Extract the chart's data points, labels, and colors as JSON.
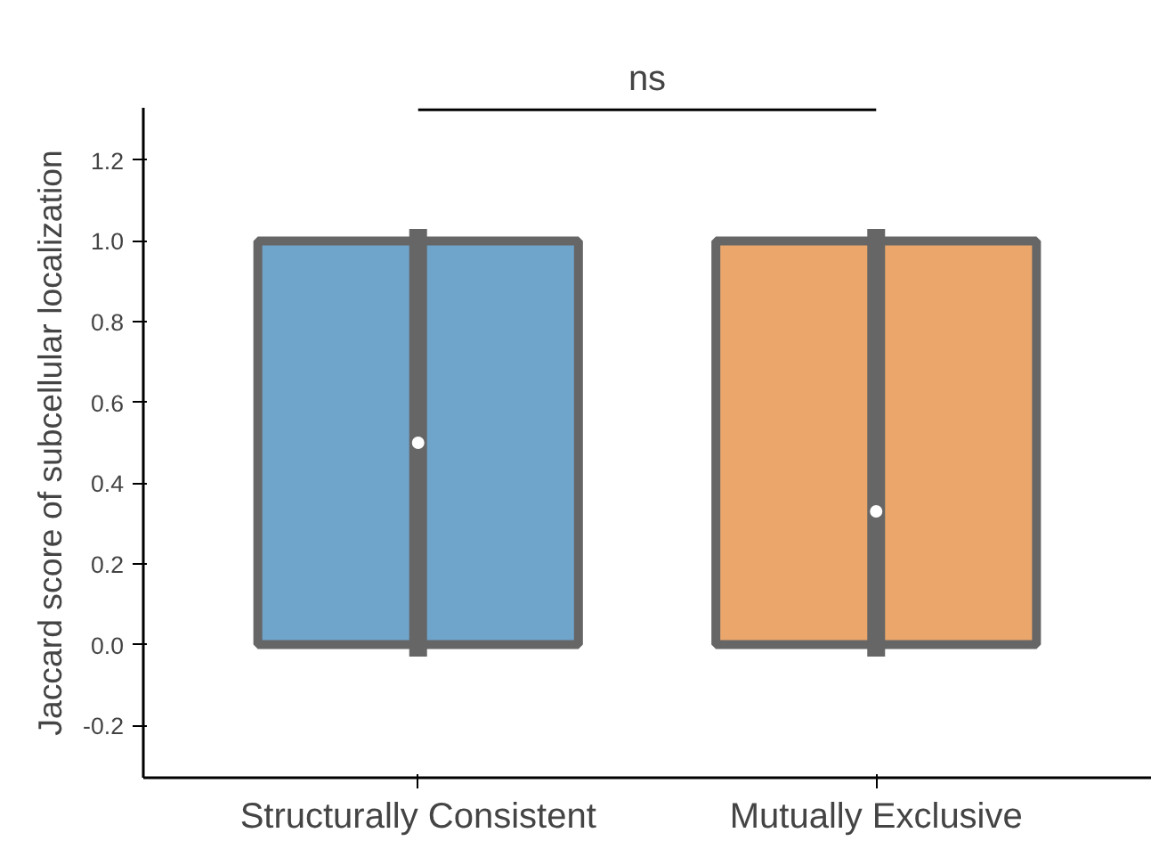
{
  "chart_data": {
    "type": "box",
    "ylabel": "Jaccard score of subcellular localization",
    "categories": [
      "Structurally Consistent",
      "Mutually Exclusive"
    ],
    "colors": [
      "#6fa4cb",
      "#eba66c"
    ],
    "boxes": [
      {
        "low": -0.03,
        "q1": 0,
        "median": 0.5,
        "q3": 1,
        "high": 1.03
      },
      {
        "low": -0.03,
        "q1": 0,
        "median": 0.33,
        "q3": 1,
        "high": 1.03
      }
    ],
    "ylim": [
      -0.33,
      1.33
    ],
    "yticks": [
      -0.2,
      {
        "value": 0,
        "label": "0.0"
      },
      0.2,
      0.4,
      0.6,
      0.8,
      {
        "value": 1,
        "label": "1.0"
      },
      1.2
    ],
    "annotations": [
      "ns"
    ],
    "grid": false
  }
}
